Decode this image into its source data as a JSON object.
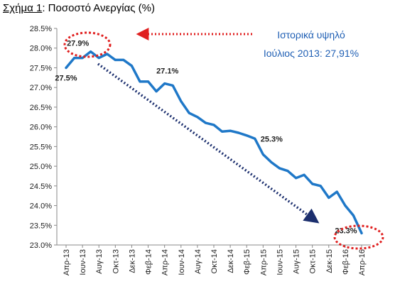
{
  "title": {
    "prefix": "Σχήμα 1",
    "suffix": ": Ποσοστό Ανεργίας (%)"
  },
  "annotation": {
    "line1": "Ιστορικά υψηλό",
    "line2": "Ιούλιος 2013: 27,91%"
  },
  "colors": {
    "line": "#1f78c8",
    "highlight": "#e02020",
    "arrow": "#1c2f6e",
    "note": "#1f5fb4"
  },
  "chart_data": {
    "type": "line",
    "title": "",
    "xlabel": "",
    "ylabel": "",
    "ylim": [
      23.0,
      28.5
    ],
    "yticks": [
      "23.0%",
      "23.5%",
      "24.0%",
      "24.5%",
      "25.0%",
      "25.5%",
      "26.0%",
      "26.5%",
      "27.0%",
      "27.5%",
      "28.0%",
      "28.5%"
    ],
    "xticks": [
      "Απρ-13",
      "Ιουν-13",
      "Αυγ-13",
      "Οκτ-13",
      "Δεκ-13",
      "Φεβ-14",
      "Απρ-14",
      "Ιουν-14",
      "Αυγ-14",
      "Οκτ-14",
      "Δεκ-14",
      "Φεβ-15",
      "Απρ-15",
      "Ιουν-15",
      "Αυγ-15",
      "Οκτ-15",
      "Δεκ-15",
      "Φεβ-16",
      "Απρ-16"
    ],
    "series": [
      {
        "values": [
          27.5,
          27.75,
          27.75,
          27.91,
          27.75,
          27.85,
          27.7,
          27.7,
          27.55,
          27.15,
          27.15,
          26.9,
          27.1,
          27.05,
          26.65,
          26.35,
          26.25,
          26.1,
          26.05,
          25.88,
          25.9,
          25.85,
          25.78,
          25.7,
          25.3,
          25.1,
          24.95,
          24.88,
          24.7,
          24.78,
          24.55,
          24.5,
          24.2,
          24.35,
          24.0,
          23.75,
          23.3
        ]
      }
    ],
    "data_labels": [
      {
        "index": 0,
        "text": "27.5%"
      },
      {
        "index": 3,
        "text": "27.9%"
      },
      {
        "index": 12,
        "text": "27.1%"
      },
      {
        "index": 24,
        "text": "25.3%"
      },
      {
        "index": 36,
        "text": "23.3%"
      }
    ],
    "grid": false,
    "legend": "none"
  }
}
